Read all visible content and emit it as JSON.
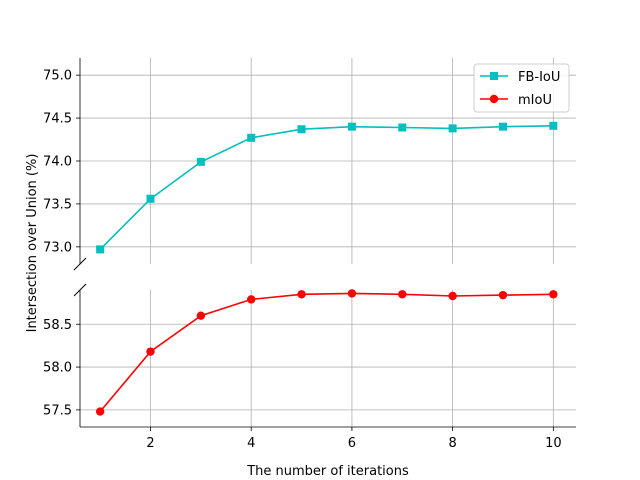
{
  "chart_data": [
    {
      "type": "line",
      "panel": "upper",
      "x": [
        1,
        2,
        3,
        4,
        5,
        6,
        7,
        8,
        9,
        10
      ],
      "series": [
        {
          "name": "FB-IoU",
          "color": "#00bfbf",
          "marker": "square",
          "values": [
            72.97,
            73.56,
            73.99,
            74.27,
            74.37,
            74.4,
            74.39,
            74.38,
            74.4,
            74.41
          ]
        }
      ],
      "ylim": [
        72.8,
        75.2
      ],
      "yticks": [
        "73.0",
        "73.5",
        "74.0",
        "74.5",
        "75.0"
      ],
      "grid": true,
      "legend": "top-right"
    },
    {
      "type": "line",
      "panel": "lower",
      "x": [
        1,
        2,
        3,
        4,
        5,
        6,
        7,
        8,
        9,
        10
      ],
      "series": [
        {
          "name": "mIoU",
          "color": "#ff0000",
          "marker": "circle",
          "values": [
            57.48,
            58.18,
            58.6,
            58.79,
            58.85,
            58.86,
            58.85,
            58.83,
            58.84,
            58.85
          ]
        }
      ],
      "ylim": [
        57.3,
        58.9
      ],
      "yticks": [
        "57.5",
        "58.0",
        "58.5"
      ],
      "xticks": [
        "2",
        "4",
        "6",
        "8",
        "10"
      ],
      "xlim": [
        0.6,
        10.45
      ],
      "grid": true
    }
  ],
  "labels": {
    "xlabel": "The number of iterations",
    "ylabel": "Intersection over Union (%)"
  },
  "legend": [
    {
      "label": "FB-IoU",
      "color": "#00bfbf",
      "marker": "square"
    },
    {
      "label": "mIoU",
      "color": "#ff0000",
      "marker": "circle"
    }
  ]
}
